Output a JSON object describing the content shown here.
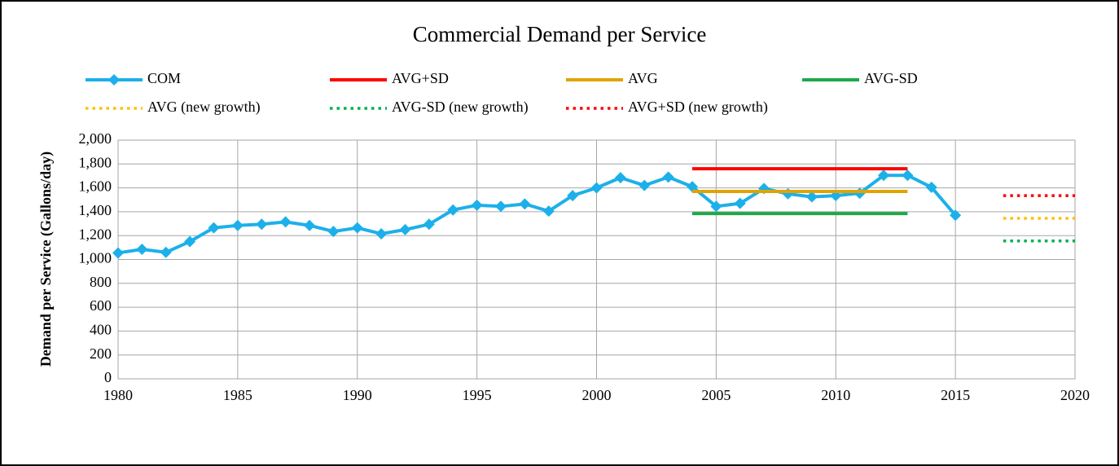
{
  "chart_data": {
    "type": "line",
    "title": "Commercial Demand per Service",
    "y_label": "Demand per Service (Gallons/day)",
    "xlim": [
      1980,
      2020
    ],
    "xticks": [
      1980,
      1985,
      1990,
      1995,
      2000,
      2005,
      2010,
      2015,
      2020
    ],
    "ylim": [
      0,
      2000
    ],
    "yticks": [
      0,
      200,
      400,
      600,
      800,
      {
        "value": 1000,
        "label": "1,000"
      },
      {
        "value": 1200,
        "label": "1,200"
      },
      {
        "value": 1400,
        "label": "1,400"
      },
      {
        "value": 1600,
        "label": "1,600"
      },
      {
        "value": 1800,
        "label": "1,800"
      },
      {
        "value": 2000,
        "label": "2,000"
      }
    ],
    "grid": true,
    "series": [
      {
        "name": "COM",
        "color": "#1cb0ea",
        "line_style": "solid",
        "marker": "diamond",
        "x": [
          1980,
          1981,
          1982,
          1983,
          1984,
          1985,
          1986,
          1987,
          1988,
          1989,
          1990,
          1991,
          1992,
          1993,
          1994,
          1995,
          1996,
          1997,
          1998,
          1999,
          2000,
          2001,
          2002,
          2003,
          2004,
          2005,
          2006,
          2007,
          2008,
          2009,
          2010,
          2011,
          2012,
          2013,
          2014,
          2015
        ],
        "values": [
          1055,
          1085,
          1060,
          1150,
          1265,
          1285,
          1295,
          1315,
          1285,
          1235,
          1265,
          1215,
          1250,
          1295,
          1415,
          1455,
          1445,
          1465,
          1405,
          1535,
          1600,
          1685,
          1620,
          1690,
          1610,
          1445,
          1470,
          1595,
          1550,
          1525,
          1535,
          1555,
          1705,
          1705,
          1605,
          1370
        ]
      },
      {
        "name": "AVG+SD",
        "color": "#ff0000",
        "line_style": "solid",
        "x": [
          2004,
          2013
        ],
        "values": [
          1760,
          1760
        ]
      },
      {
        "name": "AVG",
        "color": "#e0a400",
        "line_style": "solid",
        "x": [
          2004,
          2013
        ],
        "values": [
          1570,
          1570
        ]
      },
      {
        "name": "AVG-SD",
        "color": "#1ea84a",
        "line_style": "solid",
        "x": [
          2004,
          2013
        ],
        "values": [
          1385,
          1385
        ]
      },
      {
        "name": "AVG (new growth)",
        "color": "#ffc000",
        "line_style": "dotted",
        "x": [
          2017,
          2020
        ],
        "values": [
          1345,
          1345
        ]
      },
      {
        "name": "AVG-SD (new growth)",
        "color": "#00b050",
        "line_style": "dotted",
        "x": [
          2017,
          2020
        ],
        "values": [
          1155,
          1155
        ]
      },
      {
        "name": "AVG+SD (new growth)",
        "color": "#ff0000",
        "line_style": "dotted",
        "x": [
          2017,
          2020
        ],
        "values": [
          1535,
          1535
        ]
      }
    ]
  }
}
